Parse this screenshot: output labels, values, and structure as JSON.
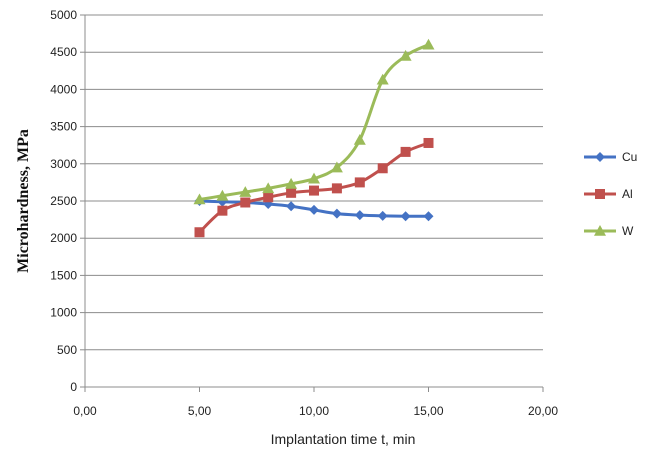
{
  "chart_data": {
    "type": "line",
    "title": "",
    "xlabel": "Implantation time t, min",
    "ylabel": "Microhardness, MPa",
    "xlim": [
      0,
      20
    ],
    "ylim": [
      0,
      5000
    ],
    "x_ticks": [
      "0,00",
      "5,00",
      "10,00",
      "15,00",
      "20,00"
    ],
    "y_ticks": [
      "0",
      "500",
      "1000",
      "1500",
      "2000",
      "2500",
      "3000",
      "3500",
      "4000",
      "4500",
      "5000"
    ],
    "grid": "horizontal",
    "legend_position": "right",
    "series": [
      {
        "name": "Cu",
        "color": "#4472c4",
        "marker": "diamond",
        "x": [
          5,
          6,
          7,
          8,
          9,
          10,
          11,
          12,
          13,
          14,
          15
        ],
        "y": [
          2500,
          2490,
          2480,
          2460,
          2430,
          2380,
          2330,
          2310,
          2300,
          2295,
          2295
        ]
      },
      {
        "name": "Al",
        "color": "#c0504d",
        "marker": "square",
        "x": [
          5,
          6,
          7,
          8,
          9,
          10,
          11,
          12,
          13,
          14,
          15
        ],
        "y": [
          2080,
          2370,
          2480,
          2550,
          2610,
          2640,
          2670,
          2750,
          2940,
          3160,
          3280
        ]
      },
      {
        "name": "W",
        "color": "#9bbb59",
        "marker": "triangle",
        "x": [
          5,
          6,
          7,
          8,
          9,
          10,
          11,
          12,
          13,
          14,
          15
        ],
        "y": [
          2520,
          2570,
          2620,
          2670,
          2730,
          2800,
          2950,
          3320,
          4130,
          4450,
          4600
        ]
      }
    ]
  }
}
